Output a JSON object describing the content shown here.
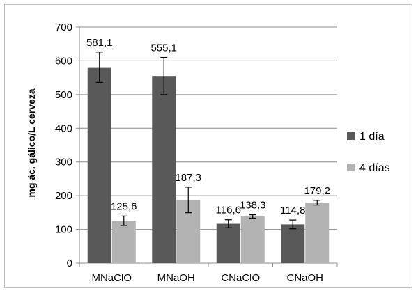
{
  "chart_data": {
    "type": "bar",
    "title": "",
    "xlabel": "",
    "ylabel": "mg ác. gálico/L cerveza",
    "ylim": [
      0,
      700
    ],
    "yticks": [
      0,
      100,
      200,
      300,
      400,
      500,
      600,
      700
    ],
    "grid": true,
    "legend_position": "right",
    "categories": [
      "MNaClO",
      "MNaOH",
      "CNaClO",
      "CNaOH"
    ],
    "series": [
      {
        "name": "1 día",
        "color": "#595959",
        "values": [
          581.1,
          555.1,
          116.6,
          114.8
        ],
        "errors": [
          45,
          55,
          12,
          13
        ],
        "labels": [
          "581,1",
          "555,1",
          "116,6",
          "114,8"
        ]
      },
      {
        "name": "4 días",
        "color": "#b3b3b3",
        "values": [
          125.6,
          187.3,
          138.3,
          179.2
        ],
        "errors": [
          14,
          38,
          5,
          7
        ],
        "labels": [
          "125,6",
          "187,3",
          "138,3",
          "179,2"
        ]
      }
    ]
  }
}
